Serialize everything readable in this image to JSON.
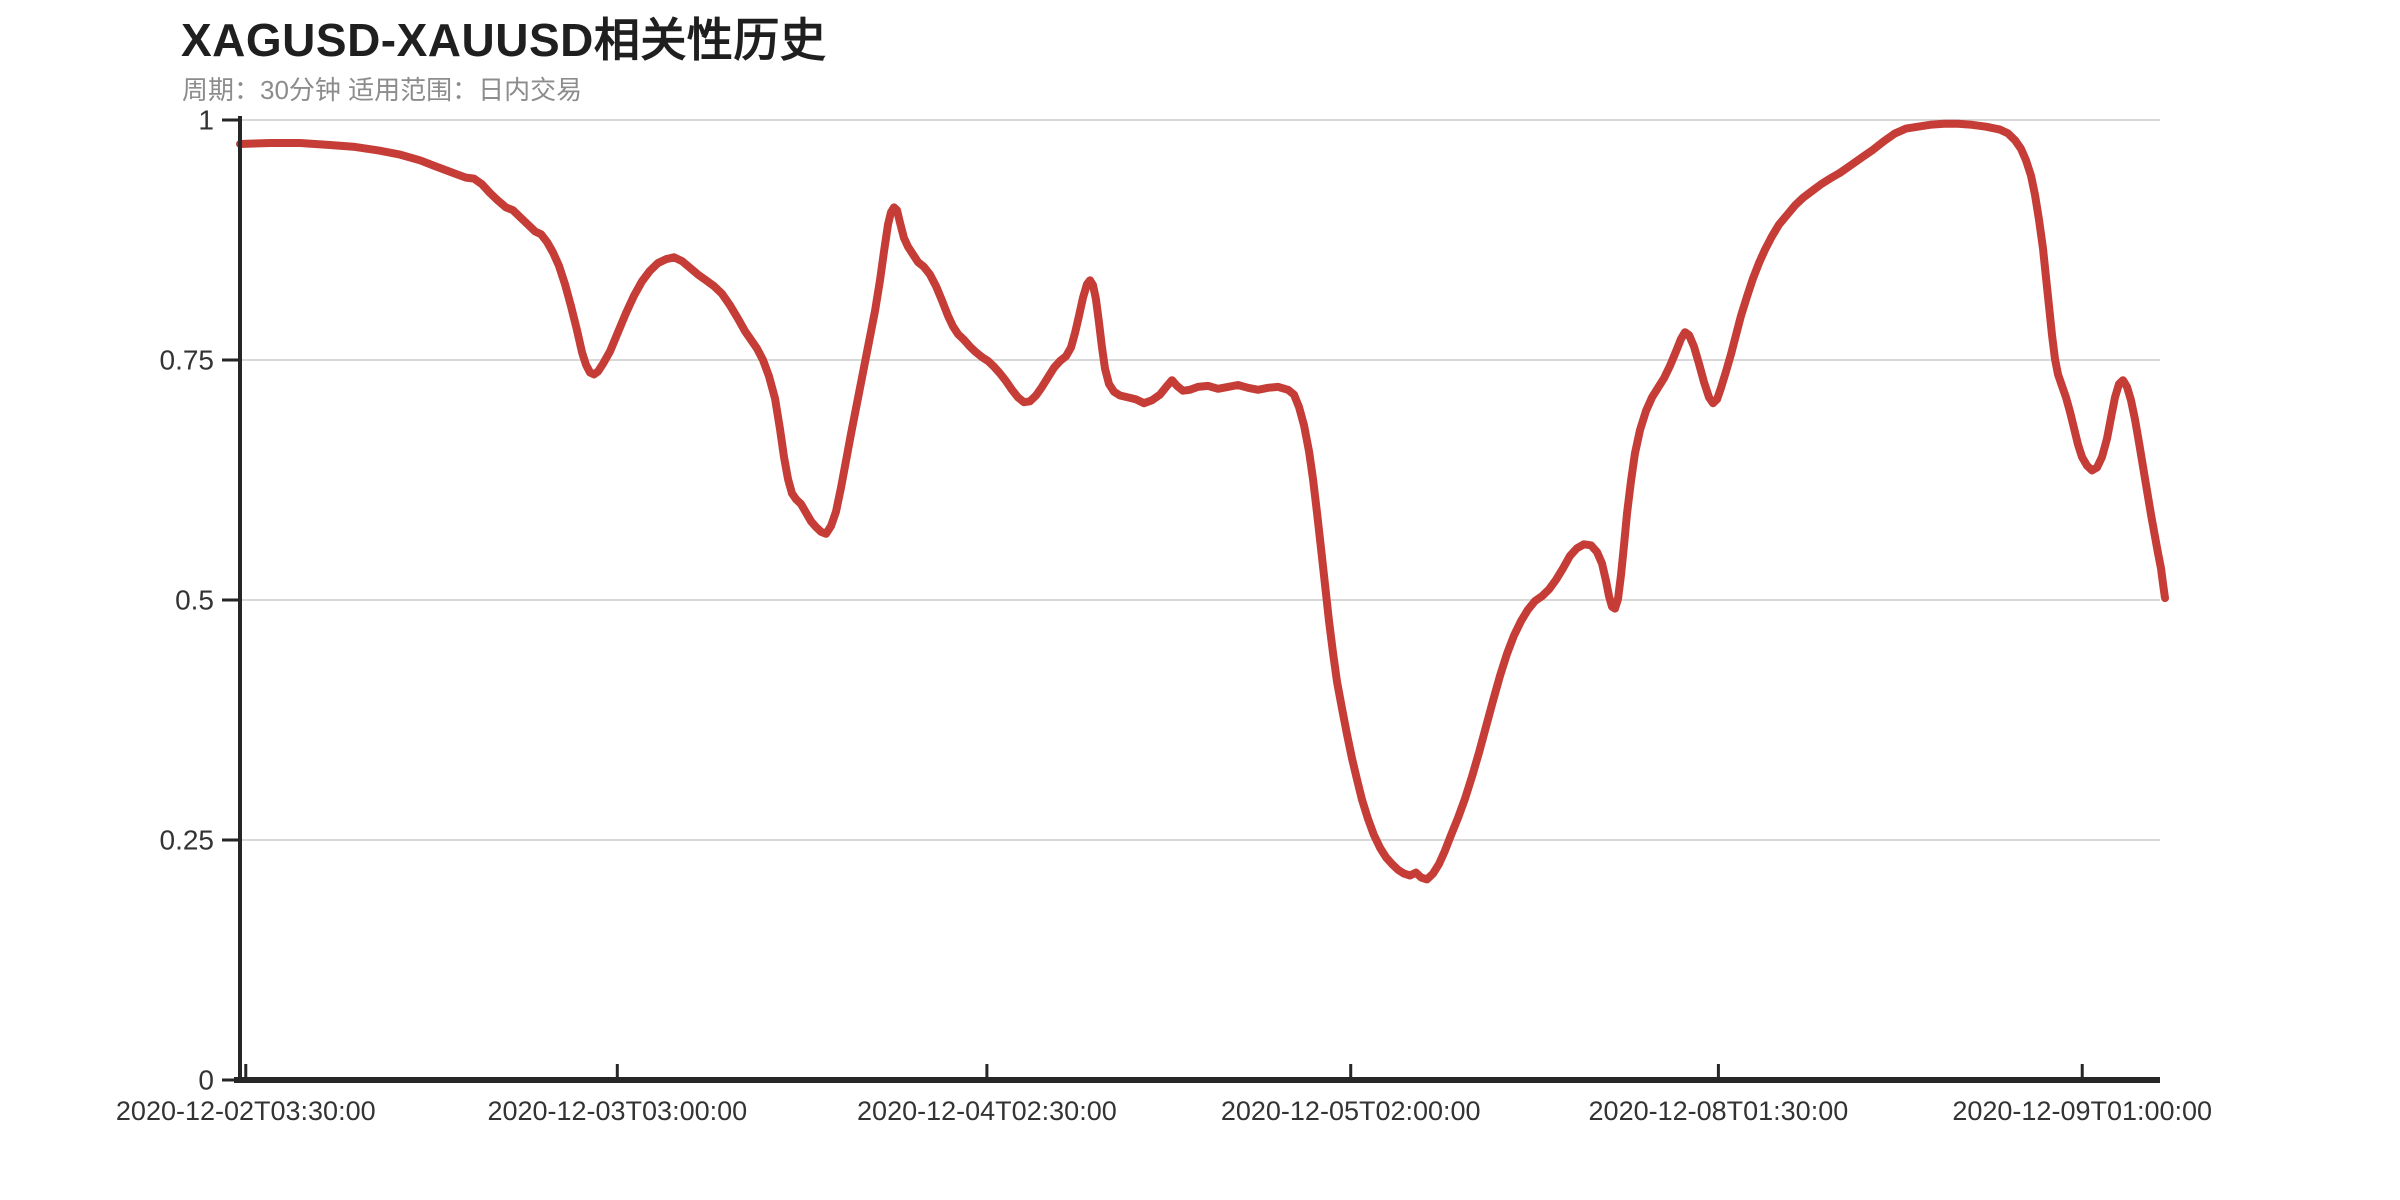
{
  "page": {
    "background": "#ffffff"
  },
  "header": {
    "title": "XAGUSD-XAUUSD相关性历史",
    "subtitle": "周期：30分钟 适用范围：日内交易"
  },
  "chart_data": {
    "type": "line",
    "title": "XAGUSD-XAUUSD相关性历史",
    "subtitle": "周期：30分钟 适用范围：日内交易",
    "series_name": "XAGUSD-XAUUSD correlation",
    "ylabel": "",
    "xlabel": "",
    "ylim": [
      0,
      1
    ],
    "grid": "horizontal",
    "legend": "none",
    "colors": {
      "line": "#c53d36",
      "grid": "#d8d8d8",
      "axis": "#262626",
      "tick_label": "#333333",
      "title": "#1f1f1f",
      "subtitle": "#8c8c8c"
    },
    "y_ticks": [
      {
        "label": "1",
        "value": 1.0
      },
      {
        "label": "0.75",
        "value": 0.75
      },
      {
        "label": "0.5",
        "value": 0.5
      },
      {
        "label": "0.25",
        "value": 0.25
      },
      {
        "label": "0",
        "value": 0.0
      }
    ],
    "x_ticks": [
      {
        "label": "2020-12-02T03:30:00",
        "f": 0.003
      },
      {
        "label": "2020-12-03T03:00:00",
        "f": 0.196
      },
      {
        "label": "2020-12-04T02:30:00",
        "f": 0.388
      },
      {
        "label": "2020-12-05T02:00:00",
        "f": 0.577
      },
      {
        "label": "2020-12-08T01:30:00",
        "f": 0.768
      },
      {
        "label": "2020-12-09T01:00:00",
        "f": 0.957
      }
    ],
    "points": [
      [
        240,
        0.975
      ],
      [
        270,
        0.976
      ],
      [
        300,
        0.976
      ],
      [
        330,
        0.974
      ],
      [
        355,
        0.972
      ],
      [
        380,
        0.968
      ],
      [
        400,
        0.964
      ],
      [
        420,
        0.958
      ],
      [
        435,
        0.952
      ],
      [
        450,
        0.946
      ],
      [
        458,
        0.943
      ],
      [
        466,
        0.94
      ],
      [
        474,
        0.939
      ],
      [
        482,
        0.933
      ],
      [
        490,
        0.924
      ],
      [
        498,
        0.916
      ],
      [
        506,
        0.909
      ],
      [
        513,
        0.906
      ],
      [
        520,
        0.899
      ],
      [
        528,
        0.891
      ],
      [
        535,
        0.884
      ],
      [
        541,
        0.881
      ],
      [
        547,
        0.873
      ],
      [
        553,
        0.862
      ],
      [
        559,
        0.848
      ],
      [
        565,
        0.829
      ],
      [
        571,
        0.806
      ],
      [
        577,
        0.781
      ],
      [
        582,
        0.758
      ],
      [
        586,
        0.745
      ],
      [
        590,
        0.737
      ],
      [
        594,
        0.735
      ],
      [
        598,
        0.738
      ],
      [
        603,
        0.746
      ],
      [
        610,
        0.759
      ],
      [
        618,
        0.779
      ],
      [
        626,
        0.799
      ],
      [
        634,
        0.817
      ],
      [
        642,
        0.832
      ],
      [
        650,
        0.843
      ],
      [
        658,
        0.851
      ],
      [
        666,
        0.855
      ],
      [
        674,
        0.857
      ],
      [
        682,
        0.853
      ],
      [
        690,
        0.846
      ],
      [
        698,
        0.839
      ],
      [
        706,
        0.833
      ],
      [
        714,
        0.827
      ],
      [
        722,
        0.819
      ],
      [
        730,
        0.807
      ],
      [
        738,
        0.793
      ],
      [
        745,
        0.78
      ],
      [
        751,
        0.771
      ],
      [
        757,
        0.762
      ],
      [
        763,
        0.75
      ],
      [
        769,
        0.733
      ],
      [
        775,
        0.71
      ],
      [
        780,
        0.678
      ],
      [
        784,
        0.649
      ],
      [
        788,
        0.626
      ],
      [
        792,
        0.611
      ],
      [
        796,
        0.605
      ],
      [
        801,
        0.6
      ],
      [
        806,
        0.591
      ],
      [
        811,
        0.582
      ],
      [
        816,
        0.576
      ],
      [
        821,
        0.571
      ],
      [
        826,
        0.569
      ],
      [
        831,
        0.577
      ],
      [
        836,
        0.592
      ],
      [
        841,
        0.617
      ],
      [
        846,
        0.645
      ],
      [
        851,
        0.673
      ],
      [
        857,
        0.705
      ],
      [
        863,
        0.737
      ],
      [
        869,
        0.769
      ],
      [
        875,
        0.801
      ],
      [
        880,
        0.833
      ],
      [
        884,
        0.863
      ],
      [
        888,
        0.891
      ],
      [
        891,
        0.904
      ],
      [
        894,
        0.909
      ],
      [
        897,
        0.906
      ],
      [
        900,
        0.893
      ],
      [
        904,
        0.877
      ],
      [
        908,
        0.868
      ],
      [
        913,
        0.86
      ],
      [
        918,
        0.852
      ],
      [
        924,
        0.847
      ],
      [
        930,
        0.839
      ],
      [
        936,
        0.827
      ],
      [
        942,
        0.812
      ],
      [
        948,
        0.796
      ],
      [
        953,
        0.785
      ],
      [
        958,
        0.777
      ],
      [
        964,
        0.771
      ],
      [
        970,
        0.764
      ],
      [
        976,
        0.758
      ],
      [
        982,
        0.753
      ],
      [
        988,
        0.749
      ],
      [
        994,
        0.743
      ],
      [
        1000,
        0.736
      ],
      [
        1006,
        0.728
      ],
      [
        1012,
        0.719
      ],
      [
        1018,
        0.711
      ],
      [
        1024,
        0.706
      ],
      [
        1030,
        0.707
      ],
      [
        1036,
        0.713
      ],
      [
        1042,
        0.722
      ],
      [
        1048,
        0.732
      ],
      [
        1054,
        0.742
      ],
      [
        1060,
        0.749
      ],
      [
        1066,
        0.754
      ],
      [
        1071,
        0.763
      ],
      [
        1075,
        0.778
      ],
      [
        1079,
        0.796
      ],
      [
        1083,
        0.815
      ],
      [
        1087,
        0.829
      ],
      [
        1090,
        0.833
      ],
      [
        1093,
        0.828
      ],
      [
        1096,
        0.813
      ],
      [
        1099,
        0.789
      ],
      [
        1102,
        0.763
      ],
      [
        1105,
        0.741
      ],
      [
        1109,
        0.725
      ],
      [
        1114,
        0.717
      ],
      [
        1120,
        0.713
      ],
      [
        1128,
        0.711
      ],
      [
        1136,
        0.709
      ],
      [
        1144,
        0.705
      ],
      [
        1152,
        0.708
      ],
      [
        1160,
        0.714
      ],
      [
        1167,
        0.723
      ],
      [
        1172,
        0.729
      ],
      [
        1177,
        0.723
      ],
      [
        1183,
        0.718
      ],
      [
        1190,
        0.719
      ],
      [
        1198,
        0.722
      ],
      [
        1208,
        0.723
      ],
      [
        1218,
        0.72
      ],
      [
        1228,
        0.722
      ],
      [
        1238,
        0.724
      ],
      [
        1248,
        0.721
      ],
      [
        1258,
        0.719
      ],
      [
        1268,
        0.721
      ],
      [
        1278,
        0.722
      ],
      [
        1288,
        0.719
      ],
      [
        1294,
        0.714
      ],
      [
        1299,
        0.701
      ],
      [
        1304,
        0.682
      ],
      [
        1309,
        0.655
      ],
      [
        1313,
        0.626
      ],
      [
        1317,
        0.591
      ],
      [
        1321,
        0.554
      ],
      [
        1325,
        0.516
      ],
      [
        1329,
        0.478
      ],
      [
        1333,
        0.445
      ],
      [
        1337,
        0.415
      ],
      [
        1342,
        0.387
      ],
      [
        1347,
        0.36
      ],
      [
        1352,
        0.335
      ],
      [
        1357,
        0.313
      ],
      [
        1362,
        0.292
      ],
      [
        1368,
        0.272
      ],
      [
        1374,
        0.255
      ],
      [
        1380,
        0.242
      ],
      [
        1386,
        0.232
      ],
      [
        1392,
        0.225
      ],
      [
        1398,
        0.219
      ],
      [
        1404,
        0.215
      ],
      [
        1410,
        0.213
      ],
      [
        1416,
        0.216
      ],
      [
        1421,
        0.211
      ],
      [
        1427,
        0.209
      ],
      [
        1433,
        0.215
      ],
      [
        1439,
        0.225
      ],
      [
        1445,
        0.239
      ],
      [
        1451,
        0.255
      ],
      [
        1458,
        0.273
      ],
      [
        1465,
        0.293
      ],
      [
        1472,
        0.316
      ],
      [
        1479,
        0.341
      ],
      [
        1486,
        0.368
      ],
      [
        1493,
        0.395
      ],
      [
        1500,
        0.421
      ],
      [
        1507,
        0.444
      ],
      [
        1514,
        0.463
      ],
      [
        1521,
        0.478
      ],
      [
        1528,
        0.49
      ],
      [
        1535,
        0.499
      ],
      [
        1542,
        0.504
      ],
      [
        1549,
        0.511
      ],
      [
        1556,
        0.521
      ],
      [
        1563,
        0.533
      ],
      [
        1570,
        0.546
      ],
      [
        1577,
        0.554
      ],
      [
        1584,
        0.558
      ],
      [
        1591,
        0.557
      ],
      [
        1597,
        0.55
      ],
      [
        1602,
        0.538
      ],
      [
        1606,
        0.52
      ],
      [
        1609,
        0.504
      ],
      [
        1612,
        0.493
      ],
      [
        1615,
        0.491
      ],
      [
        1618,
        0.501
      ],
      [
        1621,
        0.526
      ],
      [
        1624,
        0.557
      ],
      [
        1627,
        0.59
      ],
      [
        1631,
        0.624
      ],
      [
        1635,
        0.653
      ],
      [
        1640,
        0.677
      ],
      [
        1646,
        0.697
      ],
      [
        1652,
        0.711
      ],
      [
        1658,
        0.721
      ],
      [
        1664,
        0.731
      ],
      [
        1670,
        0.744
      ],
      [
        1676,
        0.759
      ],
      [
        1681,
        0.772
      ],
      [
        1685,
        0.779
      ],
      [
        1689,
        0.776
      ],
      [
        1694,
        0.764
      ],
      [
        1699,
        0.746
      ],
      [
        1704,
        0.727
      ],
      [
        1709,
        0.711
      ],
      [
        1713,
        0.705
      ],
      [
        1717,
        0.709
      ],
      [
        1721,
        0.721
      ],
      [
        1726,
        0.738
      ],
      [
        1731,
        0.756
      ],
      [
        1736,
        0.776
      ],
      [
        1741,
        0.796
      ],
      [
        1747,
        0.816
      ],
      [
        1753,
        0.835
      ],
      [
        1759,
        0.851
      ],
      [
        1765,
        0.865
      ],
      [
        1772,
        0.879
      ],
      [
        1779,
        0.891
      ],
      [
        1787,
        0.901
      ],
      [
        1795,
        0.911
      ],
      [
        1803,
        0.919
      ],
      [
        1812,
        0.926
      ],
      [
        1821,
        0.933
      ],
      [
        1830,
        0.939
      ],
      [
        1840,
        0.945
      ],
      [
        1851,
        0.953
      ],
      [
        1862,
        0.961
      ],
      [
        1873,
        0.969
      ],
      [
        1884,
        0.978
      ],
      [
        1895,
        0.986
      ],
      [
        1906,
        0.991
      ],
      [
        1918,
        0.993
      ],
      [
        1930,
        0.995
      ],
      [
        1944,
        0.996
      ],
      [
        1958,
        0.996
      ],
      [
        1972,
        0.995
      ],
      [
        1986,
        0.993
      ],
      [
        2000,
        0.99
      ],
      [
        2008,
        0.986
      ],
      [
        2015,
        0.979
      ],
      [
        2021,
        0.97
      ],
      [
        2026,
        0.958
      ],
      [
        2031,
        0.942
      ],
      [
        2035,
        0.922
      ],
      [
        2039,
        0.896
      ],
      [
        2043,
        0.866
      ],
      [
        2046,
        0.836
      ],
      [
        2049,
        0.806
      ],
      [
        2052,
        0.776
      ],
      [
        2055,
        0.751
      ],
      [
        2058,
        0.735
      ],
      [
        2062,
        0.723
      ],
      [
        2066,
        0.711
      ],
      [
        2070,
        0.696
      ],
      [
        2074,
        0.679
      ],
      [
        2078,
        0.662
      ],
      [
        2082,
        0.649
      ],
      [
        2087,
        0.64
      ],
      [
        2092,
        0.635
      ],
      [
        2097,
        0.638
      ],
      [
        2102,
        0.649
      ],
      [
        2107,
        0.668
      ],
      [
        2111,
        0.69
      ],
      [
        2115,
        0.711
      ],
      [
        2119,
        0.725
      ],
      [
        2123,
        0.729
      ],
      [
        2127,
        0.722
      ],
      [
        2131,
        0.708
      ],
      [
        2135,
        0.688
      ],
      [
        2139,
        0.664
      ],
      [
        2143,
        0.639
      ],
      [
        2147,
        0.614
      ],
      [
        2151,
        0.589
      ],
      [
        2155,
        0.566
      ],
      [
        2158,
        0.549
      ],
      [
        2161,
        0.533
      ],
      [
        2163,
        0.517
      ],
      [
        2165,
        0.502
      ]
    ]
  }
}
